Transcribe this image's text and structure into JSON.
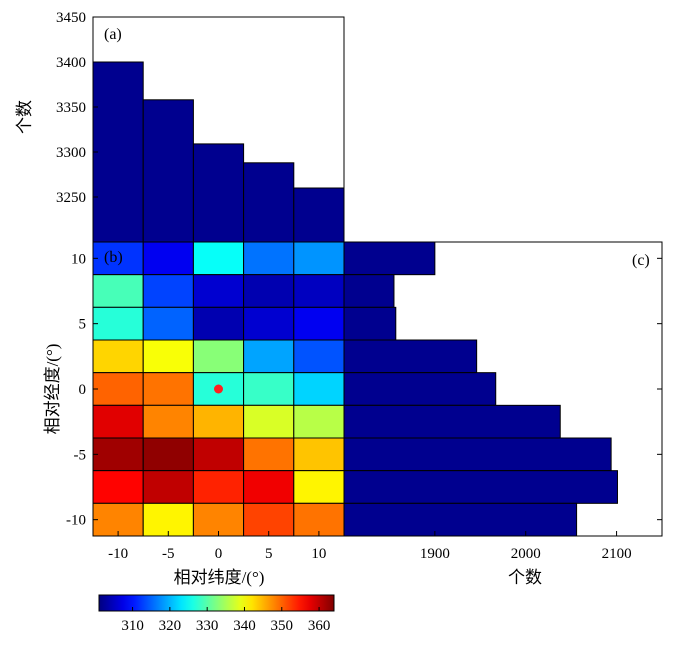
{
  "chart_data": [
    {
      "panel": "(a)",
      "type": "bar",
      "ylabel": "个数",
      "ylim": [
        3200,
        3450
      ],
      "yticks": [
        3250,
        3300,
        3350,
        3400,
        3450
      ],
      "values": [
        3400,
        3358,
        3309,
        3288,
        3260
      ]
    },
    {
      "panel": "(b)",
      "type": "heatmap",
      "xlabel": "相对纬度/(°)",
      "ylabel": "相对经度/(°)",
      "xticks": [
        -10,
        -5,
        0,
        5,
        10
      ],
      "yticks": [
        10,
        5,
        0,
        -5,
        -10
      ],
      "rows": [
        10,
        7.5,
        5,
        2.5,
        0,
        -2.5,
        -5,
        -7.5,
        -10
      ],
      "cols": [
        -10,
        -5,
        0,
        5,
        10
      ],
      "values": [
        [
          312,
          308,
          325,
          316,
          318
        ],
        [
          329,
          313,
          306,
          304,
          305
        ],
        [
          327,
          315,
          304,
          306,
          308
        ],
        [
          343,
          340,
          333,
          319,
          314
        ],
        [
          350,
          349,
          327,
          328,
          322
        ],
        [
          358,
          348,
          345,
          338,
          336
        ],
        [
          362,
          363,
          360,
          349,
          344
        ],
        [
          356,
          360,
          354,
          357,
          341
        ],
        [
          348,
          341,
          348,
          352,
          349
        ]
      ],
      "marker": {
        "x": 0,
        "y": 0,
        "color": "#ff2020"
      },
      "colorbar": {
        "range": [
          301,
          364
        ],
        "ticks": [
          310,
          320,
          330,
          340,
          350,
          360
        ]
      }
    },
    {
      "panel": "(c)",
      "type": "bar",
      "orientation": "horizontal",
      "xlabel": "个数",
      "xlim": [
        1800,
        2150
      ],
      "xticks": [
        1900,
        2000,
        2100
      ],
      "values": [
        1900,
        1855,
        1857,
        1946,
        1967,
        2038,
        2094,
        2101,
        2056
      ]
    }
  ]
}
